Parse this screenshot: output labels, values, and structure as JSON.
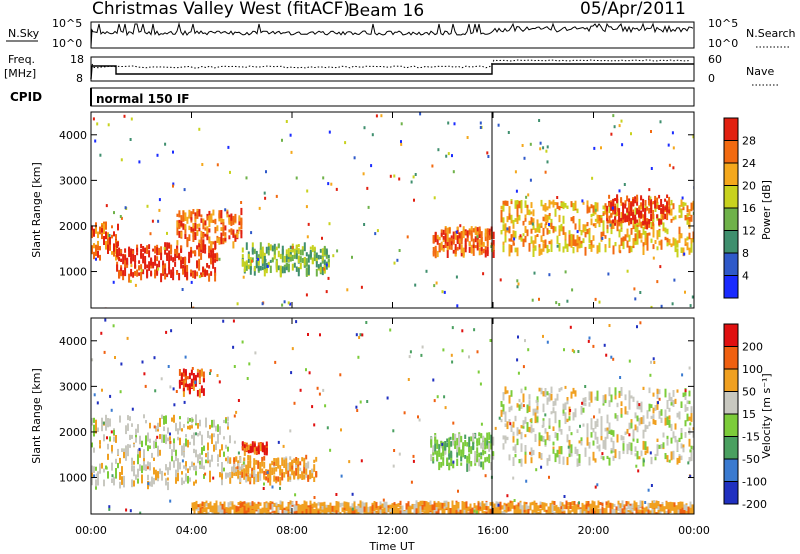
{
  "header": {
    "station": "Christmas Valley West (fitACF)",
    "beam": "Beam 16",
    "date": "05/Apr/2011"
  },
  "top_panels": {
    "nsky_label": "N.Sky",
    "nsky_ticks": [
      "10^5",
      "10^0"
    ],
    "nsearch_label": "N.Search",
    "freq_label_1": "Freq.",
    "freq_label_2": "[MHz]",
    "freq_ticks": [
      "18",
      "8"
    ],
    "nave_label": "Nave",
    "nave_ticks": [
      "60",
      "0"
    ],
    "cpid_label": "CPID",
    "cpid_value": "normal 150 IF"
  },
  "chart_data": [
    {
      "type": "heatmap",
      "name": "power",
      "xlabel": "",
      "ylabel": "Slant Range [km]",
      "xlim": [
        0,
        24
      ],
      "ylim": [
        200,
        4500
      ],
      "yticks": [
        1000,
        2000,
        3000,
        4000
      ],
      "colorbar": {
        "label": "Power [dB]",
        "ticks": [
          "4",
          "8",
          "12",
          "16",
          "20",
          "24",
          "28"
        ],
        "colors": [
          "#1a2bff",
          "#2f59c9",
          "#3f8f6e",
          "#6fb24a",
          "#c8d21e",
          "#f4a81c",
          "#f26a10",
          "#e22010"
        ]
      },
      "features": [
        {
          "t": [
            0,
            1.1
          ],
          "range": [
            1350,
            2100
          ],
          "level": 6
        },
        {
          "t": [
            1.0,
            5.0
          ],
          "range": [
            950,
            1650
          ],
          "level": 7
        },
        {
          "t": [
            3.4,
            6.0
          ],
          "range": [
            1650,
            2400
          ],
          "level": 6
        },
        {
          "t": [
            6.0,
            9.5
          ],
          "range": [
            1050,
            1650
          ],
          "level": 3
        },
        {
          "t": [
            13.6,
            16.0
          ],
          "range": [
            1450,
            2000
          ],
          "level": 6
        },
        {
          "t": [
            16.3,
            24.0
          ],
          "range": [
            1500,
            2600
          ],
          "level": 5
        },
        {
          "t": [
            20.5,
            23.0
          ],
          "range": [
            2100,
            2700
          ],
          "level": 7
        }
      ]
    },
    {
      "type": "heatmap",
      "name": "velocity",
      "xlabel": "Time UT",
      "ylabel": "Slant Range [km]",
      "xlim": [
        0,
        24
      ],
      "xticks": [
        "00:00",
        "04:00",
        "08:00",
        "12:00",
        "16:00",
        "20:00",
        "00:00"
      ],
      "ylim": [
        200,
        4500
      ],
      "yticks": [
        1000,
        2000,
        3000,
        4000
      ],
      "colorbar": {
        "label": "Velocity [m s⁻¹]",
        "ticks": [
          "200",
          "100",
          "50",
          "15",
          "-15",
          "-50",
          "-100",
          "-200"
        ],
        "colors": [
          "#2030c0",
          "#3a7ad0",
          "#4aa060",
          "#7ccc3a",
          "#c8c8c0",
          "#f0a020",
          "#f06010",
          "#e01010"
        ]
      },
      "features": [
        {
          "t": [
            0,
            5.5
          ],
          "range": [
            900,
            2400
          ],
          "class": "gray"
        },
        {
          "t": [
            5.5,
            9.0
          ],
          "range": [
            1000,
            1500
          ],
          "class": "orange"
        },
        {
          "t": [
            3.5,
            4.5
          ],
          "range": [
            2900,
            3400
          ],
          "class": "red"
        },
        {
          "t": [
            6.0,
            7.0
          ],
          "range": [
            1650,
            1800
          ],
          "class": "red"
        },
        {
          "t": [
            13.5,
            16.0
          ],
          "range": [
            1300,
            2000
          ],
          "class": "green"
        },
        {
          "t": [
            16.3,
            24.0
          ],
          "range": [
            1400,
            3000
          ],
          "class": "gray"
        },
        {
          "t": [
            4.0,
            24.0
          ],
          "range": [
            200,
            500
          ],
          "class": "orange"
        }
      ]
    }
  ]
}
